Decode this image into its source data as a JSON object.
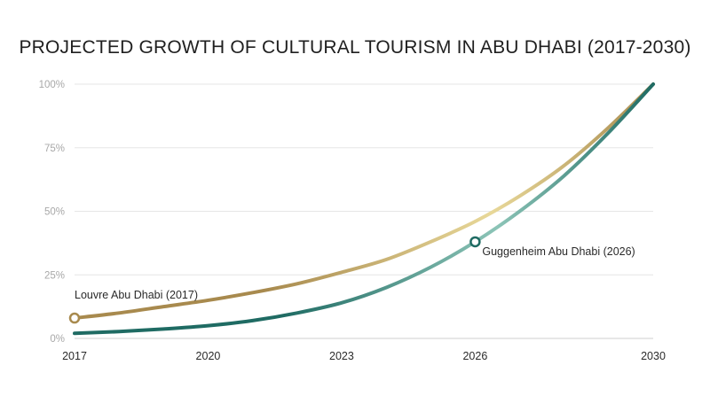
{
  "chart_data": {
    "type": "line",
    "title": "PROJECTED GROWTH OF CULTURAL TOURISM IN ABU DHABI (2017-2030)",
    "xlabel": "",
    "ylabel": "",
    "x_ticks": [
      "2017",
      "2020",
      "2023",
      "2026",
      "2030"
    ],
    "y_ticks": [
      "0%",
      "25%",
      "50%",
      "75%",
      "100%"
    ],
    "xlim": [
      2017,
      2030
    ],
    "ylim": [
      0,
      100
    ],
    "grid": true,
    "colors": {
      "gold_dark": "#a88a4e",
      "gold_light": "#e8d899",
      "teal_dark": "#1f6b63",
      "teal_light": "#8cc4b7",
      "grid": "#e6e6e6"
    },
    "series": [
      {
        "key": "gold",
        "x": [
          2017,
          2018,
          2019,
          2020,
          2021,
          2022,
          2023,
          2024,
          2025,
          2026,
          2027,
          2028,
          2029,
          2030
        ],
        "values": [
          8,
          10,
          12.5,
          15,
          18,
          21.5,
          26,
          31,
          38,
          46,
          56,
          68,
          83,
          100
        ]
      },
      {
        "key": "teal",
        "x": [
          2017,
          2018,
          2019,
          2020,
          2021,
          2022,
          2023,
          2024,
          2025,
          2026,
          2027,
          2028,
          2029,
          2030
        ],
        "values": [
          2,
          2.7,
          3.7,
          5,
          7,
          10,
          14,
          20,
          28,
          38,
          50,
          64,
          81,
          100
        ]
      }
    ],
    "annotations": [
      {
        "text": "Louvre Abu Dhabi (2017)",
        "x": 2017,
        "y": 8,
        "series": "gold"
      },
      {
        "text": "Guggenheim Abu Dhabi (2026)",
        "x": 2026,
        "y": 38,
        "series": "teal"
      }
    ]
  }
}
